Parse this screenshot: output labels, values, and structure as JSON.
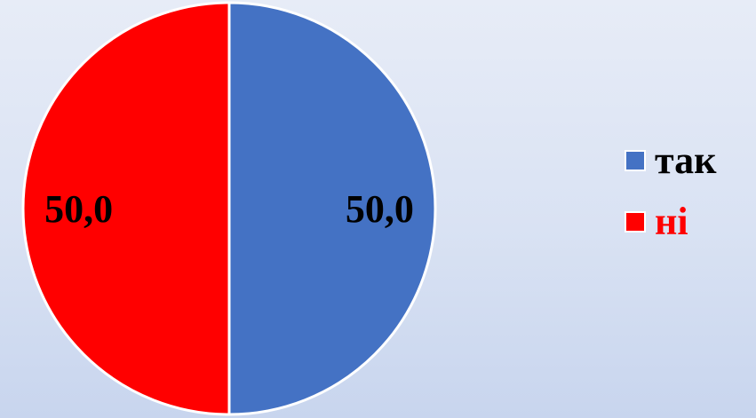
{
  "colors": {
    "series_1": "#4472c4",
    "series_2": "#ff0000",
    "slice_border": "#ffffff",
    "legend_text_1": "#000000",
    "legend_text_2": "#ff0000"
  },
  "chart_data": {
    "type": "pie",
    "categories": [
      "так",
      "ні"
    ],
    "values": [
      50.0,
      50.0
    ],
    "data_labels": [
      "50,0",
      "50,0"
    ],
    "title": "",
    "legend_placement": "right"
  }
}
